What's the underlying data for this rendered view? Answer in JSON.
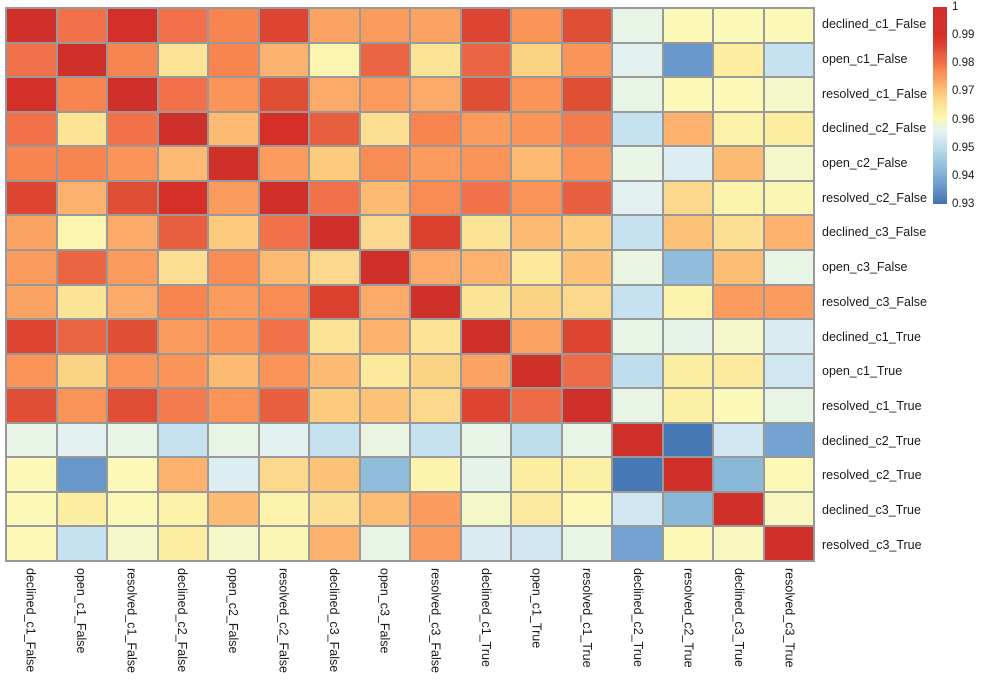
{
  "chart_data": {
    "type": "heatmap",
    "title": "",
    "legend_position": "right",
    "grid_line_color": "#999999",
    "background": "#ffffff",
    "labels": [
      "declined_c1_False",
      "open_c1_False",
      "resolved_c1_False",
      "declined_c2_False",
      "open_c2_False",
      "resolved_c2_False",
      "declined_c3_False",
      "open_c3_False",
      "resolved_c3_False",
      "declined_c1_True",
      "open_c1_True",
      "resolved_c1_True",
      "declined_c2_True",
      "resolved_c2_True",
      "declined_c3_True",
      "resolved_c3_True"
    ],
    "matrix": [
      [
        1.0,
        0.98,
        0.995,
        0.98,
        0.978,
        0.986,
        0.974,
        0.975,
        0.974,
        0.986,
        0.976,
        0.985,
        0.957,
        0.96,
        0.96,
        0.96
      ],
      [
        0.98,
        1.0,
        0.978,
        0.965,
        0.978,
        0.972,
        0.961,
        0.982,
        0.965,
        0.982,
        0.968,
        0.976,
        0.9555,
        0.936,
        0.963,
        0.951
      ],
      [
        0.995,
        0.978,
        1.0,
        0.98,
        0.976,
        0.985,
        0.973,
        0.975,
        0.973,
        0.985,
        0.976,
        0.985,
        0.957,
        0.96,
        0.96,
        0.959
      ],
      [
        0.98,
        0.965,
        0.98,
        1.0,
        0.971,
        0.99,
        0.983,
        0.966,
        0.978,
        0.975,
        0.976,
        0.979,
        0.951,
        0.972,
        0.962,
        0.963
      ],
      [
        0.978,
        0.978,
        0.976,
        0.971,
        1.0,
        0.975,
        0.969,
        0.977,
        0.975,
        0.976,
        0.971,
        0.976,
        0.957,
        0.9545,
        0.971,
        0.959
      ],
      [
        0.986,
        0.972,
        0.985,
        0.99,
        0.975,
        1.0,
        0.98,
        0.971,
        0.977,
        0.98,
        0.976,
        0.983,
        0.9555,
        0.967,
        0.9615,
        0.9605
      ],
      [
        0.974,
        0.961,
        0.973,
        0.983,
        0.969,
        0.98,
        1.0,
        0.967,
        0.987,
        0.965,
        0.971,
        0.969,
        0.951,
        0.97,
        0.966,
        0.972
      ],
      [
        0.975,
        0.982,
        0.975,
        0.966,
        0.977,
        0.971,
        0.967,
        1.0,
        0.973,
        0.972,
        0.964,
        0.97,
        0.9575,
        0.943,
        0.9705,
        0.957
      ],
      [
        0.974,
        0.965,
        0.973,
        0.978,
        0.975,
        0.977,
        0.987,
        0.973,
        1.0,
        0.965,
        0.968,
        0.967,
        0.951,
        0.9615,
        0.975,
        0.975
      ],
      [
        0.986,
        0.982,
        0.985,
        0.975,
        0.976,
        0.98,
        0.965,
        0.972,
        0.965,
        1.0,
        0.974,
        0.986,
        0.957,
        0.9565,
        0.959,
        0.954
      ],
      [
        0.976,
        0.968,
        0.976,
        0.976,
        0.971,
        0.976,
        0.971,
        0.964,
        0.968,
        0.974,
        1.0,
        0.981,
        0.95,
        0.963,
        0.9635,
        0.9525
      ],
      [
        0.985,
        0.976,
        0.985,
        0.979,
        0.976,
        0.983,
        0.969,
        0.97,
        0.967,
        0.986,
        0.981,
        1.0,
        0.957,
        0.9625,
        0.96,
        0.957
      ],
      [
        0.957,
        0.9555,
        0.957,
        0.951,
        0.957,
        0.9555,
        0.951,
        0.9575,
        0.951,
        0.957,
        0.95,
        0.957,
        1.0,
        0.931,
        0.9525,
        0.938
      ],
      [
        0.96,
        0.936,
        0.96,
        0.972,
        0.9545,
        0.967,
        0.97,
        0.943,
        0.9615,
        0.9565,
        0.963,
        0.9625,
        0.931,
        1.0,
        0.942,
        0.96
      ],
      [
        0.96,
        0.963,
        0.96,
        0.962,
        0.971,
        0.9615,
        0.966,
        0.9705,
        0.975,
        0.959,
        0.9635,
        0.96,
        0.9525,
        0.942,
        1.0,
        0.9595
      ],
      [
        0.96,
        0.951,
        0.959,
        0.963,
        0.959,
        0.9605,
        0.972,
        0.957,
        0.975,
        0.954,
        0.9525,
        0.957,
        0.938,
        0.96,
        0.9595,
        1.0
      ]
    ],
    "colorbar": {
      "ticks": [
        "1",
        "0.99",
        "0.98",
        "0.97",
        "0.96",
        "0.95",
        "0.94",
        "0.93"
      ],
      "vmin": 0.93,
      "vmax": 1.0
    },
    "colormap": {
      "name": "RdYlBu_r",
      "stops": [
        [
          0.93,
          "#4273b3"
        ],
        [
          0.938,
          "#74a3d1"
        ],
        [
          0.945,
          "#9ac7df"
        ],
        [
          0.951,
          "#c6e1ef"
        ],
        [
          0.955,
          "#e0f0f3"
        ],
        [
          0.9575,
          "#eaf5e1"
        ],
        [
          0.96,
          "#fbf8b8"
        ],
        [
          0.963,
          "#fceea0"
        ],
        [
          0.966,
          "#fcdf93"
        ],
        [
          0.969,
          "#fccb7d"
        ],
        [
          0.972,
          "#fcb26e"
        ],
        [
          0.975,
          "#fb9b5e"
        ],
        [
          0.978,
          "#f8854f"
        ],
        [
          0.98,
          "#f0714a"
        ],
        [
          0.983,
          "#e85f3f"
        ],
        [
          0.986,
          "#dd4532"
        ],
        [
          0.99,
          "#d52f27"
        ],
        [
          1.0,
          "#d0302a"
        ]
      ]
    }
  }
}
